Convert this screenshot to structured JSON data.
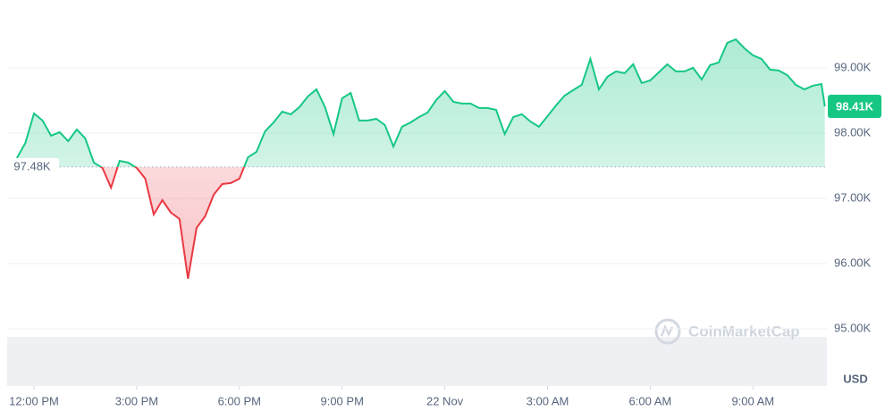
{
  "chart_data": {
    "type": "line",
    "x": [
      -0.75,
      -0.5,
      -0.25,
      0,
      0.25,
      0.5,
      0.75,
      1,
      1.25,
      1.5,
      1.75,
      2,
      2.25,
      2.5,
      2.75,
      3,
      3.25,
      3.5,
      3.75,
      4,
      4.25,
      4.5,
      4.75,
      5,
      5.25,
      5.5,
      5.75,
      6,
      6.25,
      6.5,
      6.75,
      7,
      7.25,
      7.5,
      7.75,
      8,
      8.25,
      8.5,
      8.75,
      9,
      9.25,
      9.5,
      9.75,
      10,
      10.25,
      10.5,
      10.75,
      11,
      11.25,
      11.5,
      11.75,
      12,
      12.25,
      12.5,
      12.75,
      13,
      13.25,
      13.5,
      13.75,
      14,
      14.25,
      14.5,
      14.75,
      15,
      15.25,
      15.5,
      15.75,
      16,
      16.25,
      16.5,
      16.75,
      17,
      17.25,
      17.5,
      17.75,
      18,
      18.25,
      18.5,
      18.75,
      19,
      19.25,
      19.5,
      19.75,
      20,
      20.25,
      20.5,
      20.75,
      21,
      21.25,
      21.5,
      21.75,
      22,
      22.25,
      22.5,
      22.75,
      23,
      23.1
    ],
    "values": [
      97520,
      97616,
      97849,
      98301,
      98192,
      97959,
      98014,
      97877,
      98055,
      97918,
      97548,
      97466,
      97164,
      97575,
      97548,
      97466,
      97301,
      96753,
      96972,
      96781,
      96685,
      95767,
      96548,
      96726,
      97055,
      97219,
      97233,
      97301,
      97630,
      97712,
      98027,
      98164,
      98329,
      98288,
      98397,
      98562,
      98671,
      98397,
      97986,
      98534,
      98616,
      98192,
      98192,
      98219,
      98123,
      97794,
      98096,
      98164,
      98247,
      98315,
      98507,
      98644,
      98479,
      98452,
      98452,
      98384,
      98384,
      98356,
      97986,
      98247,
      98288,
      98178,
      98096,
      98260,
      98425,
      98575,
      98658,
      98740,
      99137,
      98671,
      98863,
      98945,
      98918,
      99055,
      98767,
      98808,
      98932,
      99055,
      98945,
      98945,
      99000,
      98822,
      99041,
      99082,
      99384,
      99438,
      99301,
      99192,
      99137,
      98973,
      98959,
      98890,
      98740,
      98671,
      98726,
      98753,
      98410
    ],
    "color": "#16c784",
    "down_color": "#ea3943",
    "baseline": 97480,
    "baseline_label": "97.48K",
    "current_label": "98.41K",
    "xlim": [
      -0.8,
      23.3
    ],
    "xticks": [
      {
        "value": 0,
        "label": "12:00 PM"
      },
      {
        "value": 3,
        "label": "3:00 PM"
      },
      {
        "value": 6,
        "label": "6:00 PM"
      },
      {
        "value": 9,
        "label": "9:00 PM"
      },
      {
        "value": 12,
        "label": "22 Nov"
      },
      {
        "value": 15,
        "label": "3:00 AM"
      },
      {
        "value": 18,
        "label": "6:00 AM"
      },
      {
        "value": 21,
        "label": "9:00 AM"
      }
    ],
    "ylim": [
      94200,
      100040
    ],
    "yticks": [
      {
        "value": 95000,
        "label": "95.00K"
      },
      {
        "value": 96000,
        "label": "96.00K"
      },
      {
        "value": 97000,
        "label": "97.00K"
      },
      {
        "value": 98000,
        "label": "98.00K"
      },
      {
        "value": 99000,
        "label": "99.00K"
      }
    ],
    "grid": true,
    "y_unit": "USD",
    "watermark": "CoinMarketCap"
  }
}
